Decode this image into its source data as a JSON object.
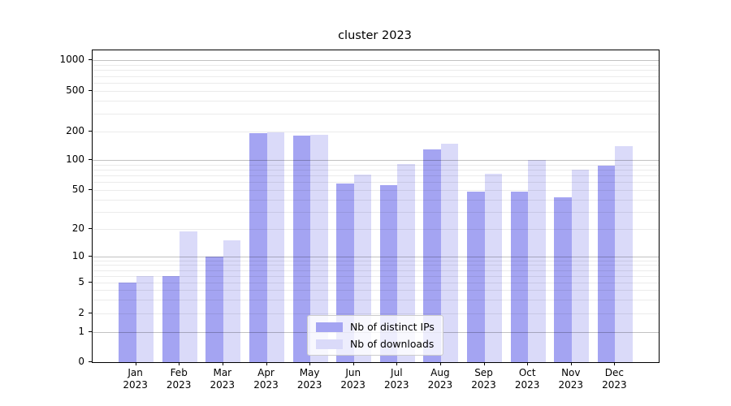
{
  "chart_data": {
    "type": "bar",
    "title": "cluster 2023",
    "categories": [
      "Jan",
      "Feb",
      "Mar",
      "Apr",
      "May",
      "Jun",
      "Jul",
      "Aug",
      "Sep",
      "Oct",
      "Nov",
      "Dec"
    ],
    "category_year": "2023",
    "series": [
      {
        "name": "Nb of distinct IPs",
        "color": "#a4a4f2",
        "values": [
          5,
          6,
          10,
          192,
          180,
          58,
          56,
          130,
          48,
          48,
          42,
          87
        ]
      },
      {
        "name": "Nb of downloads",
        "color": "#dadaf9",
        "values": [
          6,
          19,
          15,
          197,
          185,
          72,
          92,
          150,
          73,
          100,
          80,
          140
        ]
      }
    ],
    "yscale": "symlog",
    "yticks": [
      0,
      1,
      2,
      5,
      10,
      20,
      50,
      100,
      200,
      500,
      1000
    ],
    "ylim": [
      0,
      1000
    ],
    "grid": true,
    "legend_position": "lower center",
    "colors": {
      "background": "#ffffff",
      "axis": "#000000",
      "grid_major": "#c4c4c4",
      "grid_minor": "#ececec"
    }
  }
}
